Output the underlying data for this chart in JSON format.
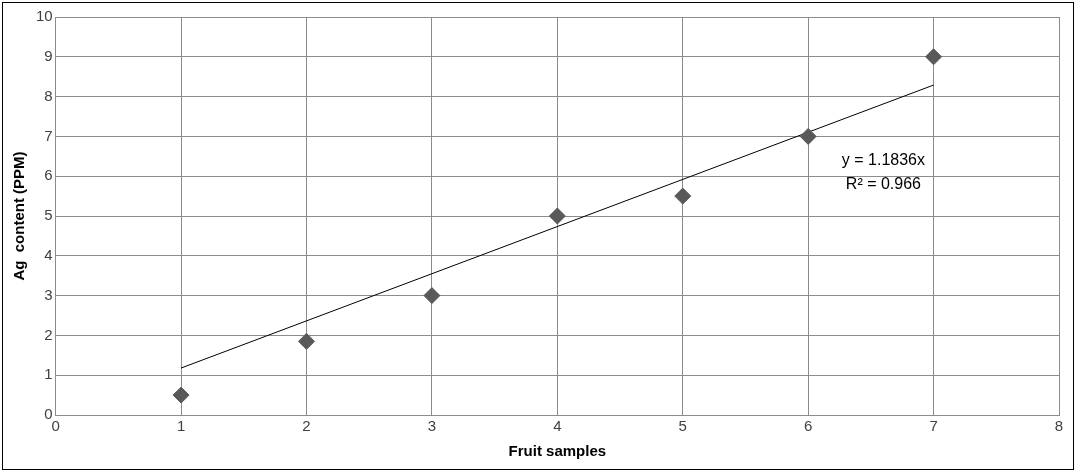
{
  "chart_data": {
    "type": "scatter",
    "xlabel": "Fruit samples",
    "ylabel": "Ag  content (PPM)",
    "series": [
      {
        "color": "#595959",
        "marker": "diamond",
        "x": [
          1,
          2,
          3,
          4,
          5,
          6,
          7
        ],
        "values": [
          0.5,
          1.85,
          3,
          5,
          5.5,
          7,
          9
        ]
      },
      {
        "type": "line",
        "color": "#000000",
        "marker": "none",
        "x": [
          1,
          7
        ],
        "values": [
          1.18,
          8.29
        ]
      }
    ],
    "xlim": [
      0,
      8
    ],
    "xticks": [
      0,
      1,
      2,
      3,
      4,
      5,
      6,
      7,
      8
    ],
    "ylim": [
      0,
      10
    ],
    "yticks": [
      0,
      1,
      2,
      3,
      4,
      5,
      6,
      7,
      8,
      9,
      10
    ],
    "grid": true,
    "legend": false,
    "line_style": "solid",
    "annotations": [
      "y = 1.1836x",
      "R² = 0.966"
    ]
  }
}
